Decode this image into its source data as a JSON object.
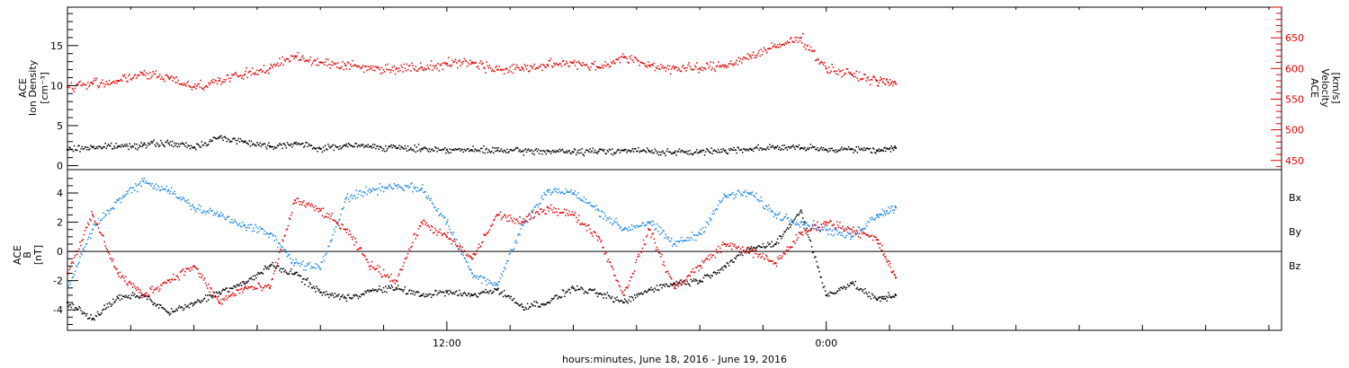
{
  "colors": {
    "density": "#000000",
    "velocity": "#e00000",
    "bx": "#000000",
    "by": "#1e88e5",
    "bz": "#e00000",
    "axis": "#000000"
  },
  "xaxis": {
    "label": "hours:minutes, June 18, 2016 - June 19, 2016",
    "tick_labels": [
      {
        "hours": 12,
        "text": "12:00"
      },
      {
        "hours": 24,
        "text": "0:00"
      }
    ],
    "range_hours": [
      0,
      38.4
    ],
    "minor_tick_every_hours": 2
  },
  "chart_data": [
    {
      "type": "scatter",
      "name": "density-velocity-panel",
      "ylabel_left": [
        "ACE",
        "Ion Density",
        "[cm⁻³]"
      ],
      "ylabel_right": [
        "ACE",
        "Velocity",
        "[km/s]"
      ],
      "yticks_left": [
        "0",
        "5",
        "10",
        "15"
      ],
      "yticks_right": [
        "450",
        "500",
        "550",
        "600",
        "650"
      ],
      "ylim_left": [
        -0.5,
        19.8
      ],
      "ylim_right": [
        435,
        700
      ],
      "grid": false,
      "series": [
        {
          "axis": "left",
          "color": "#000000",
          "x": [
            0.0,
            0.8,
            1.6,
            2.4,
            3.2,
            4.0,
            4.8,
            5.6,
            6.4,
            7.2,
            8.0,
            8.8,
            9.6,
            10.4,
            11.2,
            12.0,
            12.8,
            13.6,
            14.4,
            15.2,
            16.0,
            16.8,
            17.6,
            18.4,
            19.2,
            20.0,
            20.8,
            21.6,
            22.4,
            23.2,
            24.0,
            24.8,
            25.6,
            26.2
          ],
          "y": [
            2.0,
            2.3,
            2.4,
            2.6,
            2.8,
            2.3,
            3.5,
            3.0,
            2.4,
            2.8,
            2.1,
            2.5,
            2.4,
            2.2,
            2.1,
            2.0,
            1.9,
            1.9,
            1.8,
            1.8,
            1.7,
            1.8,
            1.9,
            1.8,
            1.6,
            1.7,
            1.9,
            2.1,
            2.3,
            2.2,
            2.0,
            2.1,
            1.9,
            2.2
          ]
        },
        {
          "axis": "right",
          "color": "#e00000",
          "x": [
            0.0,
            0.8,
            1.6,
            2.4,
            3.2,
            4.0,
            4.8,
            5.6,
            6.4,
            7.2,
            8.0,
            8.8,
            9.6,
            10.4,
            11.2,
            12.0,
            12.8,
            13.6,
            14.4,
            15.2,
            16.0,
            16.8,
            17.6,
            18.4,
            19.2,
            20.0,
            20.8,
            21.6,
            22.4,
            23.2,
            24.0,
            24.8,
            25.6,
            26.2
          ],
          "y": [
            570,
            575,
            580,
            590,
            585,
            570,
            580,
            590,
            600,
            620,
            610,
            605,
            600,
            600,
            602,
            608,
            610,
            598,
            600,
            605,
            610,
            602,
            618,
            605,
            600,
            600,
            605,
            620,
            635,
            650,
            600,
            590,
            580,
            575
          ]
        }
      ]
    },
    {
      "type": "scatter",
      "name": "imf-panel",
      "ylabel_left": [
        "ACE",
        "B",
        "[nT]"
      ],
      "yticks_left": [
        "-4",
        "-2",
        "0",
        "2",
        "4"
      ],
      "ylim_left": [
        -5.4,
        5.6
      ],
      "zero_line": true,
      "grid": false,
      "legend": [
        "Bx",
        "By",
        "Bz"
      ],
      "legend_position": "right",
      "series": [
        {
          "name": "Bx",
          "color": "#000000",
          "x": [
            0.0,
            0.8,
            1.6,
            2.4,
            3.2,
            4.0,
            4.8,
            5.6,
            6.4,
            7.2,
            8.0,
            8.8,
            9.6,
            10.4,
            11.2,
            12.0,
            12.8,
            13.6,
            14.4,
            15.2,
            16.0,
            16.8,
            17.6,
            18.4,
            19.2,
            20.0,
            20.8,
            21.6,
            22.4,
            23.2,
            24.0,
            24.8,
            25.6,
            26.2
          ],
          "y": [
            -3.5,
            -4.6,
            -3.2,
            -3.0,
            -4.2,
            -3.6,
            -2.8,
            -2.2,
            -1.0,
            -1.5,
            -2.8,
            -3.2,
            -2.7,
            -2.5,
            -3.0,
            -2.8,
            -3.0,
            -2.6,
            -3.8,
            -3.5,
            -2.5,
            -2.9,
            -3.5,
            -2.6,
            -2.2,
            -2.0,
            -1.0,
            0.2,
            0.5,
            2.8,
            -3.0,
            -2.2,
            -3.3,
            -3.0
          ]
        },
        {
          "name": "By",
          "color": "#1e88e5",
          "x": [
            0.0,
            0.8,
            1.6,
            2.4,
            3.2,
            4.0,
            4.8,
            5.6,
            6.4,
            7.2,
            8.0,
            8.8,
            9.6,
            10.4,
            11.2,
            12.0,
            12.8,
            13.6,
            14.4,
            15.2,
            16.0,
            16.8,
            17.6,
            18.4,
            19.2,
            20.0,
            20.8,
            21.6,
            22.4,
            23.2,
            24.0,
            24.8,
            25.6,
            26.2
          ],
          "y": [
            -2.5,
            1.5,
            3.5,
            4.8,
            4.2,
            3.0,
            2.5,
            1.8,
            1.2,
            -0.8,
            -1.2,
            3.6,
            4.2,
            4.5,
            4.3,
            2.0,
            -1.5,
            -2.3,
            1.8,
            4.2,
            4.0,
            2.8,
            1.5,
            2.0,
            0.5,
            1.2,
            3.8,
            4.0,
            2.5,
            2.0,
            1.5,
            1.0,
            2.5,
            3.0
          ]
        },
        {
          "name": "Bz",
          "color": "#e00000",
          "x": [
            0.0,
            0.8,
            1.6,
            2.4,
            3.2,
            4.0,
            4.8,
            5.6,
            6.4,
            7.2,
            8.0,
            8.8,
            9.6,
            10.4,
            11.2,
            12.0,
            12.8,
            13.6,
            14.4,
            15.2,
            16.0,
            16.8,
            17.6,
            18.4,
            19.2,
            20.0,
            20.8,
            21.6,
            22.4,
            23.2,
            24.0,
            24.8,
            25.6,
            26.2
          ],
          "y": [
            -1.5,
            2.5,
            -1.5,
            -3.0,
            -2.0,
            -1.0,
            -3.5,
            -2.5,
            -2.5,
            3.5,
            2.8,
            1.5,
            -1.0,
            -2.0,
            2.0,
            1.0,
            -0.5,
            2.5,
            2.0,
            3.0,
            2.5,
            1.0,
            -3.0,
            1.5,
            -2.5,
            -1.0,
            0.5,
            0.0,
            -0.8,
            1.2,
            2.0,
            1.5,
            0.8,
            -1.8
          ]
        }
      ]
    }
  ]
}
